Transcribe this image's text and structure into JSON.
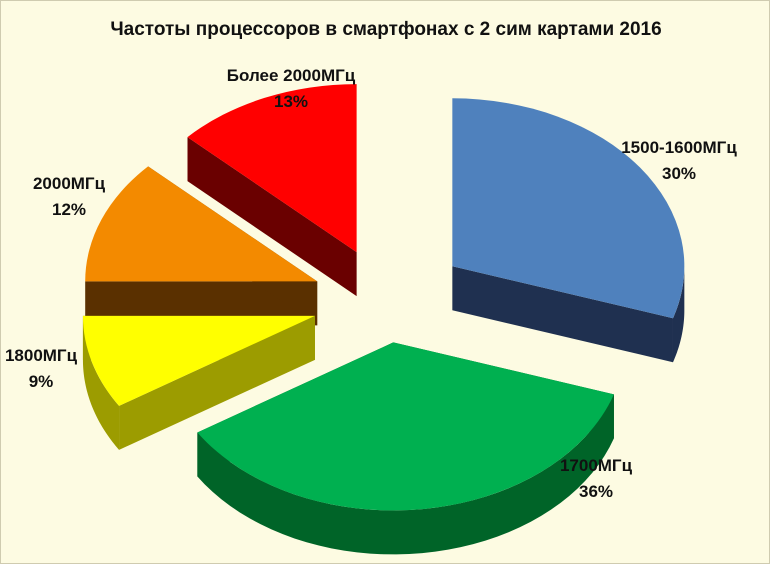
{
  "chart_data": {
    "type": "pie",
    "title": "Частоты процессоров в смартфонах с 2 сим картами 2016",
    "slices": [
      {
        "label": "1500-1600МГц",
        "pct_text": "30%",
        "value": 30,
        "color": "#4f81bd",
        "side": "#1f3050"
      },
      {
        "label": "1700МГц",
        "pct_text": "36%",
        "value": 36,
        "color": "#00b050",
        "side": "#006428"
      },
      {
        "label": "1800МГц",
        "pct_text": "9%",
        "value": 9,
        "color": "#ffff00",
        "side": "#9c9c00"
      },
      {
        "label": "2000МГц",
        "pct_text": "12%",
        "value": 12,
        "color": "#f38a00",
        "side": "#5a3000"
      },
      {
        "label": "Более 2000МГц",
        "pct_text": "13%",
        "value": 13,
        "color": "#ff0000",
        "side": "#6a0000"
      }
    ],
    "legend": "none",
    "exploded": true,
    "style": "3d"
  }
}
